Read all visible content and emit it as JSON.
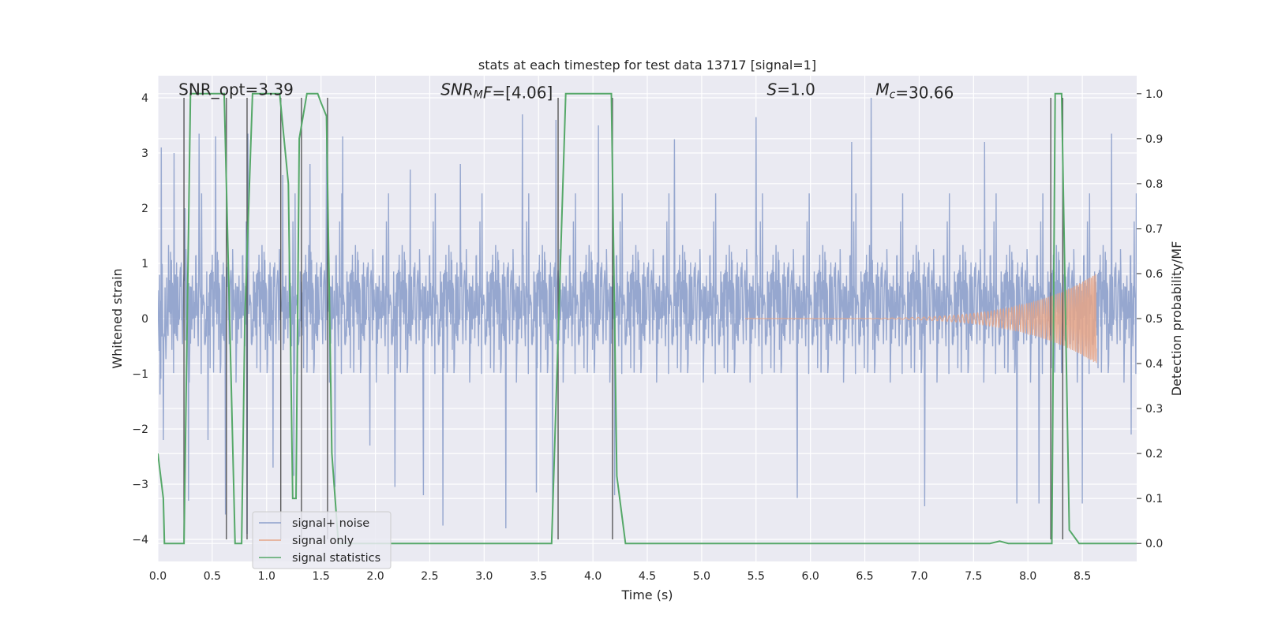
{
  "chart_data": {
    "type": "line",
    "title": "stats at each timestep for test data 13717 [signal=1]",
    "xlabel": "Time (s)",
    "ylabel_left": "Whitened strain",
    "ylabel_right": "Detection probability/MF",
    "xlim": [
      0.0,
      9.0
    ],
    "ylim_left": [
      -4.4,
      4.4
    ],
    "ylim_right": [
      -0.04,
      1.04
    ],
    "grid": true,
    "x_ticks": [
      "0.0",
      "0.5",
      "1.0",
      "1.5",
      "2.0",
      "2.5",
      "3.0",
      "3.5",
      "4.0",
      "4.5",
      "5.0",
      "5.5",
      "6.0",
      "6.5",
      "7.0",
      "7.5",
      "8.0",
      "8.5"
    ],
    "x_tick_values": [
      0.0,
      0.5,
      1.0,
      1.5,
      2.0,
      2.5,
      3.0,
      3.5,
      4.0,
      4.5,
      5.0,
      5.5,
      6.0,
      6.5,
      7.0,
      7.5,
      8.0,
      8.5
    ],
    "y_left_ticks": [
      "−4",
      "−3",
      "−2",
      "−1",
      "0",
      "1",
      "2",
      "3",
      "4"
    ],
    "y_left_tick_values": [
      -4,
      -3,
      -2,
      -1,
      0,
      1,
      2,
      3,
      4
    ],
    "y_right_ticks": [
      "0.0",
      "0.1",
      "0.2",
      "0.3",
      "0.4",
      "0.5",
      "0.6",
      "0.7",
      "0.8",
      "0.9",
      "1.0"
    ],
    "y_right_tick_values": [
      0.0,
      0.1,
      0.2,
      0.3,
      0.4,
      0.5,
      0.6,
      0.7,
      0.8,
      0.9,
      1.0
    ],
    "annotations": [
      {
        "id": "snr-opt",
        "x": 0.19,
        "y": 4.05,
        "parts": [
          {
            "t": "SNR_opt=3.39",
            "i": false
          }
        ]
      },
      {
        "id": "snr-mf",
        "x": 2.6,
        "y": 4.05,
        "parts": [
          {
            "t": "SNR",
            "i": true
          },
          {
            "t": "M",
            "i": true,
            "sub": true
          },
          {
            "t": "F",
            "i": true
          },
          {
            "t": "=[4.06]",
            "i": false
          }
        ]
      },
      {
        "id": "s-stat",
        "x": 5.6,
        "y": 4.05,
        "parts": [
          {
            "t": "S",
            "i": true
          },
          {
            "t": "=1.0",
            "i": false
          }
        ]
      },
      {
        "id": "chirp-mass",
        "x": 6.6,
        "y": 4.05,
        "parts": [
          {
            "t": "M",
            "i": true
          },
          {
            "t": "c",
            "i": true,
            "sub": true
          },
          {
            "t": "=30.66",
            "i": false
          }
        ]
      }
    ],
    "legend": {
      "location": "lower-left",
      "entries": [
        {
          "label": "signal+ noise",
          "color": "#8da0cb"
        },
        {
          "label": "signal only",
          "color": "#e5a587"
        },
        {
          "label": "signal statistics",
          "color": "#55a868"
        }
      ]
    },
    "series": [
      {
        "name": "signal+ noise",
        "axis": "left",
        "color": "#8da0cb",
        "render": "noise_band",
        "sample_rate_hz": 256,
        "typical_envelope": 1.6,
        "peak_values": [
          {
            "t": 0.03,
            "v": 3.1
          },
          {
            "t": 0.05,
            "v": -2.2
          },
          {
            "t": 0.15,
            "v": 3.0
          },
          {
            "t": 0.25,
            "v": 2.0
          },
          {
            "t": 0.28,
            "v": -3.3
          },
          {
            "t": 0.38,
            "v": 3.35
          },
          {
            "t": 0.46,
            "v": -2.2
          },
          {
            "t": 0.53,
            "v": 3.3
          },
          {
            "t": 0.62,
            "v": -3.55
          },
          {
            "t": 0.83,
            "v": 3.35
          },
          {
            "t": 0.82,
            "v": -3.9
          },
          {
            "t": 1.06,
            "v": -2.7
          },
          {
            "t": 1.15,
            "v": 2.6
          },
          {
            "t": 1.25,
            "v": -2.85
          },
          {
            "t": 1.4,
            "v": 2.8
          },
          {
            "t": 1.55,
            "v": 3.3
          },
          {
            "t": 1.63,
            "v": -3.05
          },
          {
            "t": 1.7,
            "v": 3.3
          },
          {
            "t": 1.95,
            "v": -2.3
          },
          {
            "t": 2.18,
            "v": -3.05
          },
          {
            "t": 2.32,
            "v": 2.7
          },
          {
            "t": 2.44,
            "v": -3.2
          },
          {
            "t": 2.62,
            "v": -3.75
          },
          {
            "t": 2.78,
            "v": 2.8
          },
          {
            "t": 3.2,
            "v": -3.8
          },
          {
            "t": 3.35,
            "v": 3.7
          },
          {
            "t": 3.48,
            "v": -3.15
          },
          {
            "t": 3.63,
            "v": -3.55
          },
          {
            "t": 3.66,
            "v": 3.6
          },
          {
            "t": 4.05,
            "v": 3.5
          },
          {
            "t": 4.2,
            "v": -3.2
          },
          {
            "t": 4.75,
            "v": 3.25
          },
          {
            "t": 5.5,
            "v": 3.65
          },
          {
            "t": 5.88,
            "v": -3.25
          },
          {
            "t": 6.38,
            "v": 3.2
          },
          {
            "t": 6.56,
            "v": 4.0
          },
          {
            "t": 7.05,
            "v": -3.4
          },
          {
            "t": 7.6,
            "v": 3.2
          },
          {
            "t": 7.9,
            "v": -3.35
          },
          {
            "t": 8.1,
            "v": -3.35
          },
          {
            "t": 8.5,
            "v": -3.35
          },
          {
            "t": 8.77,
            "v": 3.35
          },
          {
            "t": 8.95,
            "v": -2.1
          }
        ]
      },
      {
        "name": "signal only",
        "axis": "left",
        "color": "#e5a587",
        "render": "chirp",
        "start_time": 5.4,
        "merger_time": 8.63,
        "peak_amplitude": 0.82,
        "start_frequency_hz": 10,
        "end_frequency_hz": 80
      },
      {
        "name": "signal statistics",
        "axis": "right",
        "color": "#55a868",
        "render": "line",
        "points": [
          [
            0.0,
            0.2
          ],
          [
            0.05,
            0.1
          ],
          [
            0.06,
            0.0
          ],
          [
            0.24,
            0.0
          ],
          [
            0.3,
            1.0
          ],
          [
            0.61,
            1.0
          ],
          [
            0.71,
            0.0
          ],
          [
            0.77,
            0.0
          ],
          [
            0.8,
            0.5
          ],
          [
            0.87,
            1.0
          ],
          [
            1.12,
            1.0
          ],
          [
            1.2,
            0.8
          ],
          [
            1.24,
            0.1
          ],
          [
            1.27,
            0.1
          ],
          [
            1.3,
            0.9
          ],
          [
            1.37,
            1.0
          ],
          [
            1.47,
            1.0
          ],
          [
            1.5,
            0.98
          ],
          [
            1.55,
            0.95
          ],
          [
            1.6,
            0.2
          ],
          [
            1.66,
            0.0
          ],
          [
            3.62,
            0.0
          ],
          [
            3.75,
            1.0
          ],
          [
            4.17,
            1.0
          ],
          [
            4.22,
            0.15
          ],
          [
            4.3,
            0.0
          ],
          [
            7.65,
            0.0
          ],
          [
            7.74,
            0.005
          ],
          [
            7.82,
            0.0
          ],
          [
            8.22,
            0.0
          ],
          [
            8.25,
            1.0
          ],
          [
            8.31,
            1.0
          ],
          [
            8.38,
            0.03
          ],
          [
            8.47,
            0.0
          ],
          [
            9.0,
            0.0
          ]
        ]
      }
    ],
    "vertical_markers": [
      0.24,
      0.63,
      0.82,
      1.13,
      1.32,
      1.56,
      3.68,
      4.18,
      8.21,
      8.32
    ]
  }
}
